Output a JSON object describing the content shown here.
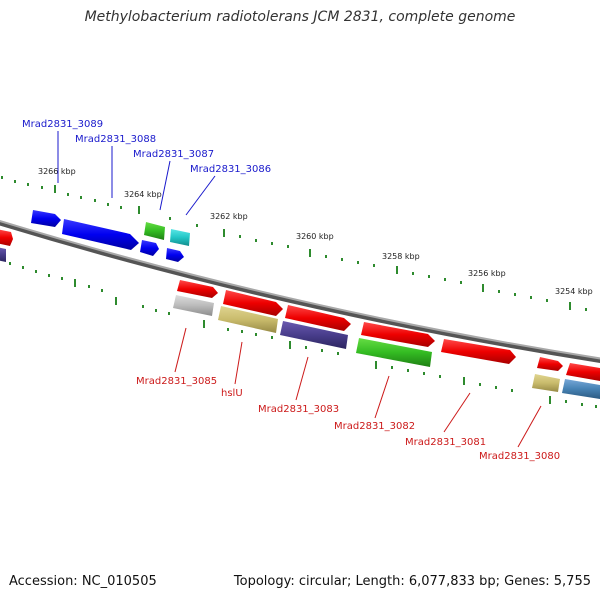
{
  "title": "Methylobacterium radiotolerans JCM 2831, complete genome",
  "accession": "Accession: NC_010505",
  "topology": "Topology: circular; Length: 6,077,833 bp; Genes: 5,755",
  "scale": {
    "unit": "kbp",
    "ticks": [
      {
        "label": "3266 kbp"
      },
      {
        "label": "3264 kbp"
      },
      {
        "label": "3262 kbp"
      },
      {
        "label": "3260 kbp"
      },
      {
        "label": "3258 kbp"
      },
      {
        "label": "3256 kbp"
      },
      {
        "label": "3254 kbp"
      }
    ]
  },
  "upper_strand_genes": [
    {
      "name": "Mrad2831_3089",
      "color": "#1a1acc"
    },
    {
      "name": "Mrad2831_3088",
      "color": "#1a1acc"
    },
    {
      "name": "Mrad2831_3087",
      "color": "#1a1acc"
    },
    {
      "name": "Mrad2831_3086",
      "color": "#1a1acc"
    }
  ],
  "lower_strand_genes": [
    {
      "name": "Mrad2831_3085",
      "color": "#cc1a1a"
    },
    {
      "name": "hslU",
      "color": "#cc1a1a"
    },
    {
      "name": "Mrad2831_3083",
      "color": "#cc1a1a"
    },
    {
      "name": "Mrad2831_3082",
      "color": "#cc1a1a"
    },
    {
      "name": "Mrad2831_3081",
      "color": "#cc1a1a"
    },
    {
      "name": "Mrad2831_3080",
      "color": "#cc1a1a"
    }
  ],
  "colors": {
    "backbone": "#8a8a8a",
    "ticks": "#2e8b2e",
    "forward_cds": "#ff0000",
    "reverse_cds": "#0000ff",
    "label_blue": "#1a1acc",
    "label_red": "#cc1a1a"
  }
}
